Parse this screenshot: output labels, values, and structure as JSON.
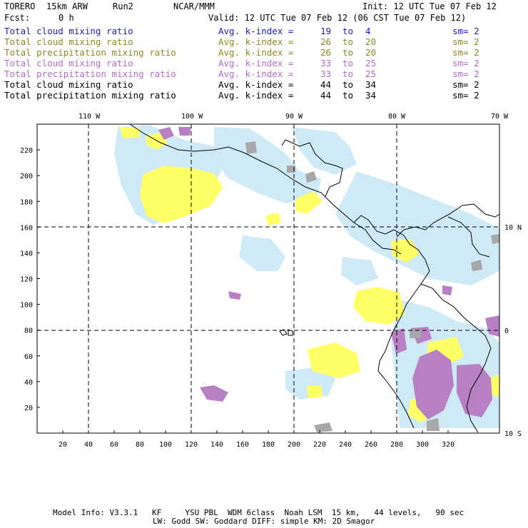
{
  "header": {
    "model": "TORERO",
    "resolution": "15km ARW",
    "run": "Run2",
    "center": "NCAR/MMM",
    "init": "Init: 12 UTC Tue 07 Feb 12",
    "fcst_label": "Fcst:",
    "fcst_value": "0 h",
    "valid": "Valid: 12 UTC Tue 07 Feb 12 (06 CST Tue 07 Feb 12)"
  },
  "legend": [
    {
      "field": "Total cloud mixing ratio",
      "desc": "Avg. k-index =",
      "k1": "19",
      "to": "to",
      "k2": "4",
      "sm": "sm= 2",
      "color": "#1b1bd6"
    },
    {
      "field": "Total cloud mixing ratio",
      "desc": "Avg. k-index =",
      "k1": "26",
      "to": "to",
      "k2": "20",
      "sm": "sm= 2",
      "color": "#8a8a22"
    },
    {
      "field": "Total precipitation mixing ratio",
      "desc": "Avg. k-index =",
      "k1": "26",
      "to": "to",
      "k2": "20",
      "sm": "sm= 2",
      "color": "#8a8a22"
    },
    {
      "field": "Total cloud mixing ratio",
      "desc": "Avg. k-index =",
      "k1": "33",
      "to": "to",
      "k2": "25",
      "sm": "sm= 2",
      "color": "#b26bcc"
    },
    {
      "field": "Total precipitation mixing ratio",
      "desc": "Avg. k-index =",
      "k1": "33",
      "to": "to",
      "k2": "25",
      "sm": "sm= 2",
      "color": "#b26bcc"
    },
    {
      "field": "Total cloud mixing ratio",
      "desc": "Avg. k-index =",
      "k1": "44",
      "to": "to",
      "k2": "34",
      "sm": "sm= 2",
      "color": "#000000"
    },
    {
      "field": "Total precipitation mixing ratio",
      "desc": "Avg. k-index =",
      "k1": "44",
      "to": "to",
      "k2": "34",
      "sm": "sm= 2",
      "color": "#000000"
    }
  ],
  "map": {
    "lon_labels": [
      "110 W",
      "100 W",
      "90 W",
      "80 W",
      "70 W"
    ],
    "lat_labels": [
      "10 N",
      "0",
      "10 S"
    ],
    "x_ticks": [
      "20",
      "40",
      "60",
      "80",
      "100",
      "120",
      "140",
      "160",
      "180",
      "200",
      "220",
      "240",
      "260",
      "280",
      "300",
      "320"
    ],
    "y_ticks": [
      "20",
      "40",
      "60",
      "80",
      "100",
      "120",
      "140",
      "160",
      "180",
      "200",
      "220"
    ],
    "colors": {
      "light_blue": "#cfeaf7",
      "yellow": "#ffff66",
      "violet": "#b77fc4",
      "gray": "#a8a8a8"
    }
  },
  "footer": {
    "line1": "Model Info: V3.3.1   KF     YSU PBL  WDM 6class  Noah LSM  15 km,   44 levels,   90 sec",
    "line2": "LW: Godd SW: Goddard DIFF: simple KM: 2D Smagor"
  }
}
